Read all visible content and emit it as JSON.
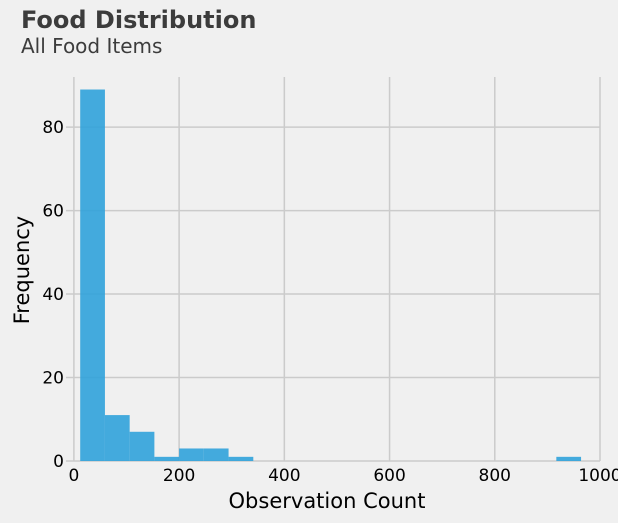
{
  "chart_data": {
    "type": "bar",
    "title": "Food Distribution",
    "subtitle": "All Food Items",
    "xlabel": "Observation Count",
    "ylabel": "Frequency",
    "xlim": [
      -15,
      1000
    ],
    "ylim": [
      0,
      92
    ],
    "grid": true,
    "color": "#30a2da",
    "xticks": [
      0,
      200,
      400,
      600,
      800,
      1000
    ],
    "yticks": [
      0,
      20,
      40,
      60,
      80
    ],
    "bins": [
      {
        "x0": 12,
        "x1": 59,
        "count": 89
      },
      {
        "x0": 59,
        "x1": 106,
        "count": 11
      },
      {
        "x0": 106,
        "x1": 153,
        "count": 7
      },
      {
        "x0": 153,
        "x1": 200,
        "count": 1
      },
      {
        "x0": 200,
        "x1": 247,
        "count": 3
      },
      {
        "x0": 247,
        "x1": 294,
        "count": 3
      },
      {
        "x0": 294,
        "x1": 341,
        "count": 1
      },
      {
        "x0": 341,
        "x1": 388,
        "count": 0
      },
      {
        "x0": 388,
        "x1": 435,
        "count": 0
      },
      {
        "x0": 435,
        "x1": 482,
        "count": 0
      },
      {
        "x0": 482,
        "x1": 529,
        "count": 0
      },
      {
        "x0": 529,
        "x1": 576,
        "count": 0
      },
      {
        "x0": 576,
        "x1": 623,
        "count": 0
      },
      {
        "x0": 623,
        "x1": 670,
        "count": 0
      },
      {
        "x0": 670,
        "x1": 717,
        "count": 0
      },
      {
        "x0": 717,
        "x1": 764,
        "count": 0
      },
      {
        "x0": 764,
        "x1": 811,
        "count": 0
      },
      {
        "x0": 811,
        "x1": 858,
        "count": 0
      },
      {
        "x0": 858,
        "x1": 905,
        "count": 0
      },
      {
        "x0": 917,
        "x1": 964,
        "count": 1
      }
    ]
  }
}
